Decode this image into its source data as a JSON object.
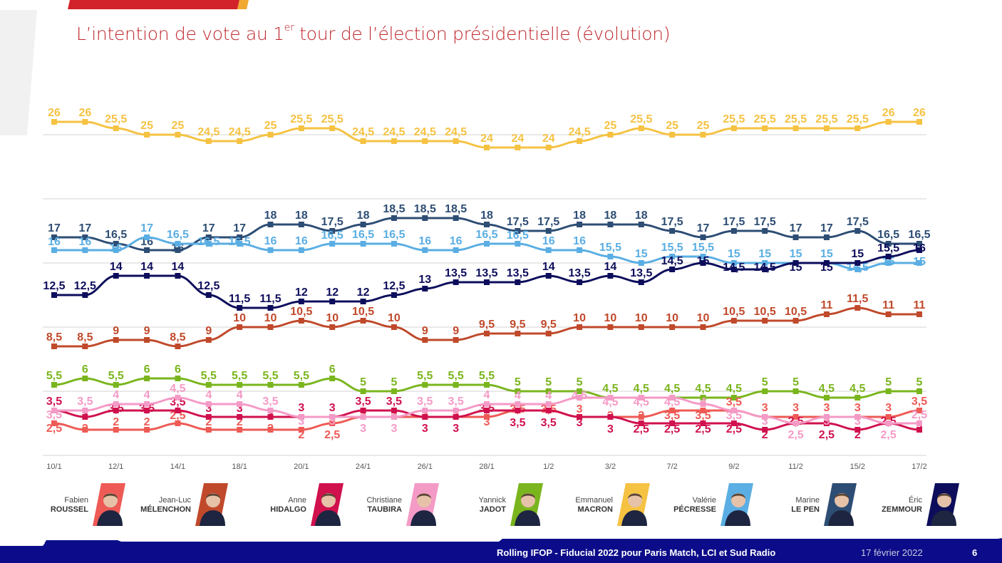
{
  "header": {
    "title_pre": "L’intention de vote au 1",
    "title_sup": "er",
    "title_post": " tour de l’élection présidentielle (évolution)"
  },
  "chart_data": {
    "type": "line",
    "title": "L’intention de vote au 1er tour de l’élection présidentielle (évolution)",
    "xlabel": "",
    "ylabel": "",
    "ylim": [
      0,
      27
    ],
    "grid": true,
    "categories": [
      "10/1",
      "",
      "12/1",
      "",
      "14/1",
      "",
      "18/1",
      "",
      "20/1",
      "",
      "24/1",
      "",
      "26/1",
      "",
      "28/1",
      "",
      "1/2",
      "",
      "3/2",
      "",
      "7/2",
      "",
      "9/2",
      "",
      "11/2",
      "",
      "15/2",
      "",
      "17/2"
    ],
    "series": [
      {
        "name": "Emmanuel MACRON",
        "color": "#f5c242",
        "values": [
          26,
          26,
          25.5,
          25,
          25,
          24.5,
          24.5,
          25,
          25.5,
          25.5,
          24.5,
          24.5,
          24.5,
          24.5,
          24,
          24,
          24,
          24.5,
          25,
          25.5,
          25,
          25,
          25.5,
          25.5,
          25.5,
          25.5,
          25.5,
          26,
          26
        ]
      },
      {
        "name": "Marine LE PEN",
        "color": "#2d4d74",
        "values": [
          17,
          17,
          16.5,
          16,
          16,
          17,
          17,
          18,
          18,
          17.5,
          18,
          18.5,
          18.5,
          18.5,
          18,
          17.5,
          17.5,
          18,
          18,
          18,
          17.5,
          17,
          17.5,
          17.5,
          17,
          17,
          17.5,
          16.5,
          16.5
        ]
      },
      {
        "name": "Valérie PÉCRESSE",
        "color": "#5aaee3",
        "values": [
          16,
          16,
          16,
          17,
          16.5,
          16.5,
          16.5,
          16,
          16,
          16.5,
          16.5,
          16.5,
          16,
          16,
          16.5,
          16.5,
          16,
          16,
          15.5,
          15,
          15.5,
          15.5,
          15,
          15,
          15,
          15,
          14.5,
          15,
          15
        ]
      },
      {
        "name": "Éric ZEMMOUR",
        "color": "#0d0d5c",
        "values": [
          12.5,
          12.5,
          14,
          14,
          14,
          12.5,
          11.5,
          11.5,
          12,
          12,
          12,
          12.5,
          13,
          13.5,
          13.5,
          13.5,
          14,
          13.5,
          14,
          13.5,
          14.5,
          15,
          14.5,
          14.5,
          15,
          15,
          15,
          15.5,
          16
        ]
      },
      {
        "name": "Jean-Luc MÉLENCHON",
        "color": "#c0492b",
        "values": [
          8.5,
          8.5,
          9,
          9,
          8.5,
          9,
          10,
          10,
          10.5,
          10,
          10.5,
          10,
          9,
          9,
          9.5,
          9.5,
          9.5,
          10,
          10,
          10,
          10,
          10,
          10.5,
          10.5,
          10.5,
          11,
          11.5,
          11,
          11
        ]
      },
      {
        "name": "Yannick JADOT",
        "color": "#7ab51d",
        "values": [
          5.5,
          6,
          5.5,
          6,
          6,
          5.5,
          5.5,
          5.5,
          5.5,
          6,
          5,
          5,
          5.5,
          5.5,
          5.5,
          5,
          5,
          5,
          4.5,
          4.5,
          4.5,
          4.5,
          4.5,
          5,
          5,
          4.5,
          4.5,
          5,
          5
        ]
      },
      {
        "name": "Fabien ROUSSEL",
        "color": "#ee5a55",
        "values": [
          2.5,
          2,
          2,
          2,
          2.5,
          2,
          2,
          2,
          2,
          2.5,
          3,
          3,
          3,
          3,
          3,
          3.5,
          3.5,
          3,
          3,
          3,
          3.5,
          3.5,
          3.5,
          3,
          3,
          3,
          3,
          3,
          3.5
        ]
      },
      {
        "name": "Anne HIDALGO",
        "color": "#d0114e",
        "values": [
          3.5,
          3,
          3.5,
          3.5,
          3.5,
          3,
          3,
          3,
          3,
          3,
          3.5,
          3.5,
          3,
          3,
          3.5,
          3.5,
          3.5,
          3,
          3,
          2.5,
          2.5,
          2.5,
          2.5,
          2,
          2.5,
          2.5,
          2,
          2.5,
          2
        ]
      },
      {
        "name": "Christiane TAUBIRA",
        "color": "#f49ac6",
        "values": [
          3.5,
          3.5,
          4,
          4,
          4.5,
          4,
          4,
          3.5,
          3,
          3,
          3,
          3,
          3.5,
          3.5,
          4,
          4,
          4,
          4.5,
          4.5,
          4.5,
          4.5,
          4,
          3.5,
          3,
          2.5,
          3,
          3,
          2.5,
          2.5
        ]
      }
    ]
  },
  "legend": [
    {
      "first": "Fabien",
      "last": "ROUSSEL",
      "color": "#ee5a55",
      "icon": "portrait-photo"
    },
    {
      "first": "Jean-Luc",
      "last": "MÉLENCHON",
      "color": "#c0492b",
      "icon": "portrait-photo"
    },
    {
      "first": "Anne",
      "last": "HIDALGO",
      "color": "#d0114e",
      "icon": "portrait-photo"
    },
    {
      "first": "Christiane",
      "last": "TAUBIRA",
      "color": "#f49ac6",
      "icon": "portrait-photo"
    },
    {
      "first": "Yannick",
      "last": "JADOT",
      "color": "#7ab51d",
      "icon": "portrait-photo"
    },
    {
      "first": "Emmanuel",
      "last": "MACRON",
      "color": "#f5c242",
      "icon": "portrait-photo"
    },
    {
      "first": "Valérie",
      "last": "PÉCRESSE",
      "color": "#5aaee3",
      "icon": "portrait-photo"
    },
    {
      "first": "Marine",
      "last": "LE PEN",
      "color": "#2d4d74",
      "icon": "portrait-photo"
    },
    {
      "first": "Éric",
      "last": "ZEMMOUR",
      "color": "#0d0d5c",
      "icon": "portrait-photo"
    }
  ],
  "footer": {
    "source": "Rolling IFOP - Fiducial 2022 pour Paris Match, LCI et Sud Radio",
    "date": "17 février 2022",
    "page": "6",
    "band_color": "#0c0c8a"
  },
  "brand_colors": {
    "title": "#c0272d",
    "top_bar": "#d2232a",
    "top_bar_accent": "#f0a830"
  }
}
